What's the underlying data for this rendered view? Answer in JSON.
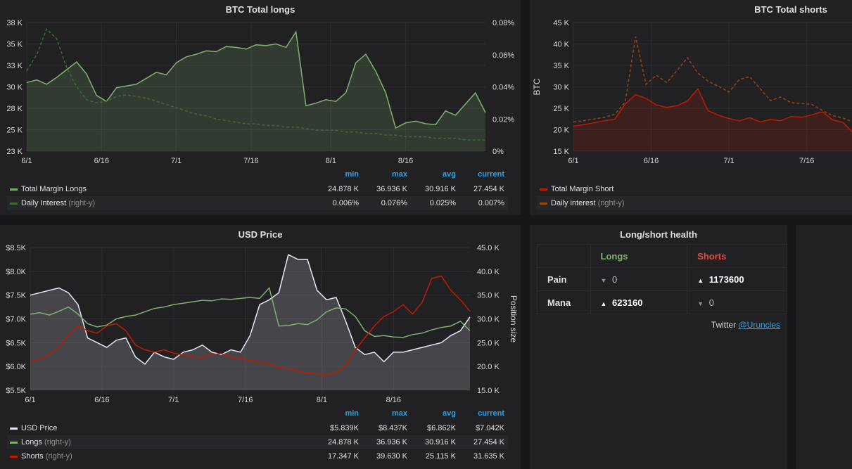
{
  "longs_panel": {
    "title": "BTC Total longs",
    "legend": {
      "headers": [
        "min",
        "max",
        "avg",
        "current"
      ],
      "series": [
        {
          "name": "Total Margin Longs",
          "suffix": "",
          "color": "#7eb26d",
          "values": [
            "24.878 K",
            "36.936 K",
            "30.916 K",
            "27.454 K"
          ]
        },
        {
          "name": "Daily Interest",
          "suffix": "(right-y)",
          "color": "#3f6833",
          "values": [
            "0.006%",
            "0.076%",
            "0.025%",
            "0.007%"
          ]
        }
      ]
    }
  },
  "shorts_panel": {
    "title": "BTC Total shorts",
    "legend": {
      "series": [
        {
          "name": "Total Margin Short",
          "suffix": "",
          "color": "#bf1b00"
        },
        {
          "name": "Daily interest",
          "suffix": "(right-y)",
          "color": "#99440a"
        }
      ]
    }
  },
  "price_panel": {
    "title": "USD Price",
    "legend": {
      "headers": [
        "min",
        "max",
        "avg",
        "current"
      ],
      "series": [
        {
          "name": "USD Price",
          "suffix": "",
          "color": "#e8e8f8",
          "values": [
            "$5.839K",
            "$8.437K",
            "$6.862K",
            "$7.042K"
          ]
        },
        {
          "name": "Longs",
          "suffix": "(right-y)",
          "color": "#7eb26d",
          "values": [
            "24.878 K",
            "36.936 K",
            "30.916 K",
            "27.454 K"
          ]
        },
        {
          "name": "Shorts",
          "suffix": "(right-y)",
          "color": "#bf1b00",
          "values": [
            "17.347 K",
            "39.630 K",
            "25.115 K",
            "31.635 K"
          ]
        }
      ]
    }
  },
  "health_panel": {
    "title": "Long/short health",
    "col_longs": "Longs",
    "col_shorts": "Shorts",
    "rows": [
      {
        "label": "Pain",
        "longs_arrow": "▼",
        "longs": "0",
        "shorts_arrow": "▲",
        "shorts": "1173600"
      },
      {
        "label": "Mana",
        "longs_arrow": "▲",
        "longs": "623160",
        "shorts_arrow": "▼",
        "shorts": "0"
      }
    ],
    "twitter_label": "Twitter",
    "twitter_handle": "@Uruncles",
    "longs_color": "#7eb26d",
    "shorts_color": "#e24d42"
  },
  "chart_data": [
    {
      "id": "longs",
      "type": "area",
      "title": "BTC Total longs",
      "x": [
        "6/1",
        "6/3",
        "6/5",
        "6/7",
        "6/9",
        "6/11",
        "6/13",
        "6/15",
        "6/17",
        "6/19",
        "6/21",
        "6/23",
        "6/25",
        "6/27",
        "6/29",
        "7/1",
        "7/3",
        "7/5",
        "7/7",
        "7/9",
        "7/11",
        "7/13",
        "7/15",
        "7/17",
        "7/19",
        "7/21",
        "7/23",
        "7/25",
        "7/27",
        "7/29",
        "7/31",
        "8/2",
        "8/4",
        "8/6",
        "8/8",
        "8/10",
        "8/12",
        "8/14",
        "8/16",
        "8/18",
        "8/20",
        "8/22",
        "8/24",
        "8/26",
        "8/28",
        "8/30",
        "8/31"
      ],
      "x_ticks": [
        "6/1",
        "6/16",
        "7/1",
        "7/16",
        "8/1",
        "8/16"
      ],
      "ylim": [
        23000,
        38000
      ],
      "y_ticks": [
        "23 K",
        "25 K",
        "28 K",
        "30 K",
        "33 K",
        "35 K",
        "38 K"
      ],
      "y2lim": [
        0,
        0.08
      ],
      "y2_ticks": [
        "0%",
        "0.02%",
        "0.04%",
        "0.06%",
        "0.08%"
      ],
      "series": [
        {
          "name": "Total Margin Longs",
          "axis": "left",
          "fill": true,
          "color": "#7eb26d",
          "values": [
            31000,
            31300,
            30800,
            31600,
            32500,
            33400,
            32000,
            29500,
            28800,
            30400,
            30600,
            30800,
            31500,
            32200,
            31900,
            33300,
            34000,
            34300,
            34700,
            34600,
            35200,
            35100,
            34900,
            35400,
            35300,
            35500,
            35100,
            36900,
            28300,
            28600,
            29000,
            28800,
            29800,
            33300,
            34300,
            32300,
            29800,
            25700,
            26300,
            26500,
            26200,
            26100,
            27700,
            27200,
            28500,
            29800,
            27500
          ]
        },
        {
          "name": "Daily Interest",
          "axis": "right",
          "fill": false,
          "color": "#3f6833",
          "values": [
            0.05,
            0.06,
            0.076,
            0.07,
            0.052,
            0.04,
            0.032,
            0.03,
            0.031,
            0.034,
            0.035,
            0.034,
            0.033,
            0.031,
            0.029,
            0.027,
            0.025,
            0.023,
            0.022,
            0.02,
            0.019,
            0.018,
            0.017,
            0.017,
            0.016,
            0.016,
            0.015,
            0.015,
            0.014,
            0.013,
            0.013,
            0.013,
            0.012,
            0.012,
            0.011,
            0.011,
            0.01,
            0.01,
            0.009,
            0.009,
            0.009,
            0.008,
            0.008,
            0.008,
            0.007,
            0.007,
            0.007
          ]
        }
      ]
    },
    {
      "id": "shorts",
      "type": "area",
      "title": "BTC Total shorts",
      "ylabel": "BTC",
      "x": [
        "6/1",
        "6/3",
        "6/5",
        "6/7",
        "6/9",
        "6/11",
        "6/13",
        "6/15",
        "6/17",
        "6/19",
        "6/21",
        "6/23",
        "6/25",
        "6/27",
        "6/29",
        "7/1",
        "7/3",
        "7/5",
        "7/7",
        "7/9",
        "7/11",
        "7/13",
        "7/15",
        "7/17",
        "7/19",
        "7/21",
        "7/23",
        "7/25"
      ],
      "x_ticks": [
        "6/1",
        "6/16",
        "7/1",
        "7/16"
      ],
      "ylim": [
        15000,
        45000
      ],
      "y_ticks": [
        "15 K",
        "20 K",
        "25 K",
        "30 K",
        "35 K",
        "40 K",
        "45 K"
      ],
      "series": [
        {
          "name": "Total Margin Short",
          "axis": "left",
          "fill": true,
          "color": "#bf1b00",
          "values": [
            20800,
            21200,
            21600,
            22100,
            22500,
            26000,
            28200,
            27300,
            25800,
            25200,
            25600,
            26700,
            29500,
            24400,
            23400,
            22600,
            22100,
            22800,
            21800,
            22400,
            22100,
            23100,
            22900,
            23500,
            24200,
            22300,
            21700,
            19200
          ]
        },
        {
          "name": "Daily interest",
          "axis": "left",
          "fill": false,
          "color": "#99440a",
          "values": [
            21800,
            22100,
            22500,
            22900,
            23600,
            26500,
            41700,
            30600,
            32700,
            31000,
            33800,
            36800,
            33200,
            31300,
            30100,
            28800,
            31700,
            32400,
            29600,
            26800,
            27600,
            26300,
            26100,
            25900,
            24500,
            23300,
            22700,
            21800
          ]
        }
      ]
    },
    {
      "id": "price",
      "type": "area",
      "title": "USD Price",
      "ylabel": "Position size",
      "x": [
        "6/1",
        "6/3",
        "6/5",
        "6/7",
        "6/9",
        "6/11",
        "6/13",
        "6/15",
        "6/17",
        "6/19",
        "6/21",
        "6/23",
        "6/25",
        "6/27",
        "6/29",
        "7/1",
        "7/3",
        "7/5",
        "7/7",
        "7/9",
        "7/11",
        "7/13",
        "7/15",
        "7/17",
        "7/19",
        "7/21",
        "7/23",
        "7/25",
        "7/27",
        "7/29",
        "7/31",
        "8/2",
        "8/4",
        "8/6",
        "8/8",
        "8/10",
        "8/12",
        "8/14",
        "8/16",
        "8/18",
        "8/20",
        "8/22",
        "8/24",
        "8/26",
        "8/28",
        "8/30",
        "8/31"
      ],
      "x_ticks": [
        "6/1",
        "6/16",
        "7/1",
        "7/16",
        "8/1",
        "8/16"
      ],
      "ylim": [
        5500,
        8500
      ],
      "y_ticks": [
        "$5.5K",
        "$6.0K",
        "$6.5K",
        "$7.0K",
        "$7.5K",
        "$8.0K",
        "$8.5K"
      ],
      "y2lim": [
        15000,
        45000
      ],
      "y2_ticks": [
        "15.0 K",
        "20.0 K",
        "25.0 K",
        "30.0 K",
        "35.0 K",
        "40.0 K",
        "45.0 K"
      ],
      "series": [
        {
          "name": "USD Price",
          "axis": "left",
          "fill": true,
          "color": "#e8e8f8",
          "values": [
            7500,
            7550,
            7600,
            7650,
            7550,
            7300,
            6600,
            6500,
            6400,
            6550,
            6600,
            6200,
            6050,
            6300,
            6200,
            6150,
            6300,
            6350,
            6450,
            6300,
            6250,
            6350,
            6300,
            6650,
            7300,
            7400,
            7550,
            8350,
            8250,
            8250,
            7600,
            7400,
            7450,
            6950,
            6400,
            6250,
            6300,
            6100,
            6300,
            6300,
            6350,
            6400,
            6450,
            6500,
            6650,
            6750,
            7040
          ]
        },
        {
          "name": "Longs",
          "axis": "right",
          "fill": false,
          "color": "#7eb26d",
          "values": [
            31000,
            31300,
            30800,
            31600,
            32500,
            31000,
            29000,
            28300,
            28700,
            30000,
            30500,
            30800,
            31500,
            32200,
            32500,
            33000,
            33300,
            33600,
            33900,
            33800,
            34200,
            34100,
            34300,
            34500,
            34300,
            36500,
            28500,
            28600,
            29000,
            28800,
            29800,
            31500,
            32300,
            32100,
            30500,
            27500,
            26300,
            26500,
            26200,
            26100,
            26700,
            27000,
            27700,
            28200,
            28500,
            29500,
            27500
          ]
        },
        {
          "name": "Shorts",
          "axis": "right",
          "fill": false,
          "color": "#bf1b00",
          "values": [
            21000,
            21500,
            22500,
            24000,
            26500,
            28500,
            27500,
            27000,
            28500,
            29000,
            27500,
            24500,
            23500,
            23000,
            23500,
            22800,
            22400,
            22100,
            21900,
            22500,
            22700,
            22000,
            21600,
            21300,
            20900,
            20600,
            19800,
            19600,
            19000,
            18600,
            18500,
            18200,
            18700,
            20100,
            23500,
            26000,
            28500,
            30500,
            31500,
            33000,
            31000,
            33500,
            38500,
            39000,
            36000,
            34000,
            31600
          ]
        }
      ]
    }
  ]
}
